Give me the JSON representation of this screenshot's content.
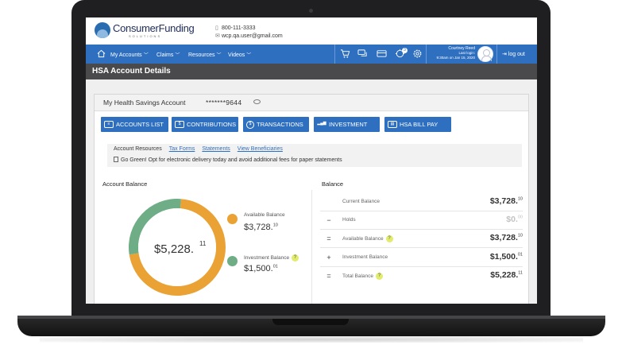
{
  "header": {
    "logo_text_bold": "Consumer",
    "logo_text": "Funding",
    "logo_sub": "SOLUTIONS",
    "phone": "800-111-3333",
    "email": "wcp.qa.user@gmail.com"
  },
  "nav": {
    "items": [
      "My Accounts",
      "Claims",
      "Resources",
      "Videos"
    ],
    "notification_count": "3",
    "user_name": "Courtney Reed",
    "last_login_label": "Last login:",
    "last_login_time": "9:30am on Jan 15, 2020",
    "logout": "log out"
  },
  "page_title": "HSA Account Details",
  "account": {
    "title": "My Health Savings Account",
    "number": "*******9644"
  },
  "buttons": {
    "accounts_list": "ACCOUNTS LIST",
    "contributions": "CONTRIBUTIONS",
    "transactions": "TRANSACTIONS",
    "investment": "INVESTMENT",
    "hsa_bill_pay": "HSA BILL PAY"
  },
  "resources": {
    "label": "Account Resources",
    "links": [
      "Tax Forms",
      "Statements",
      "View Beneficiaries"
    ],
    "notice": "Go Green! Opt for electronic delivery today and avoid additional fees for paper statements"
  },
  "account_balance": {
    "heading": "Account Balance",
    "total_main": "$5,228.",
    "total_cents": "11",
    "legend": [
      {
        "label": "Available Balance",
        "main": "$3,728.",
        "cents": "10",
        "color": "#e9a233",
        "help": false
      },
      {
        "label": "Investment Balance",
        "main": "$1,500.",
        "cents": "01",
        "color": "#6fad86",
        "help": true
      }
    ]
  },
  "chart_data": {
    "type": "pie",
    "categories": [
      "Available Balance",
      "Investment Balance"
    ],
    "values": [
      3728.1,
      1500.01
    ],
    "colors": [
      "#e9a233",
      "#6fad86"
    ]
  },
  "balance": {
    "heading": "Balance",
    "rows": [
      {
        "op": "",
        "label": "Current Balance",
        "main": "$3,728.",
        "cents": "10",
        "muted": false,
        "help": false
      },
      {
        "op": "−",
        "label": "Holds",
        "main": "$0.",
        "cents": "00",
        "muted": true,
        "help": false
      },
      {
        "op": "=",
        "label": "Available Balance",
        "main": "$3,728.",
        "cents": "10",
        "muted": false,
        "help": true
      },
      {
        "op": "+",
        "label": "Investment Balance",
        "main": "$1,500.",
        "cents": "01",
        "muted": false,
        "help": false
      },
      {
        "op": "=",
        "label": "Total Balance",
        "main": "$5,228.",
        "cents": "11",
        "muted": false,
        "help": true
      }
    ]
  }
}
